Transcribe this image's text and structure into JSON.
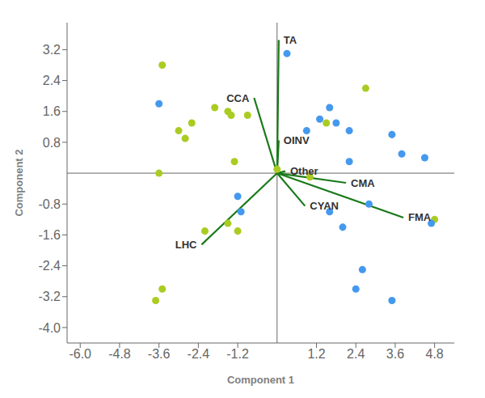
{
  "chart_data": {
    "type": "scatter",
    "xlabel": "Component 1",
    "ylabel": "Component 2",
    "series": [
      {
        "color": "#aacc22",
        "values": [
          [
            -3.5,
            2.8
          ],
          [
            -2.6,
            1.3
          ],
          [
            -3.0,
            1.1
          ],
          [
            -2.8,
            0.9
          ],
          [
            -1.9,
            1.7
          ],
          [
            -1.5,
            1.6
          ],
          [
            -1.4,
            1.5
          ],
          [
            -0.9,
            1.5
          ],
          [
            -1.3,
            0.3
          ],
          [
            0.0,
            0.1
          ],
          [
            1.5,
            1.3
          ],
          [
            2.7,
            2.2
          ],
          [
            -1.5,
            -1.3
          ],
          [
            -1.2,
            -1.5
          ],
          [
            -2.2,
            -1.5
          ],
          [
            -3.6,
            0.0
          ],
          [
            -3.5,
            -3.0
          ],
          [
            -3.7,
            -3.3
          ],
          [
            1.0,
            -0.1
          ],
          [
            4.8,
            -1.2
          ]
        ]
      },
      {
        "color": "#4499ee",
        "values": [
          [
            0.3,
            3.1
          ],
          [
            1.6,
            1.7
          ],
          [
            1.8,
            1.3
          ],
          [
            0.9,
            1.1
          ],
          [
            1.3,
            1.4
          ],
          [
            2.2,
            1.1
          ],
          [
            3.5,
            1.0
          ],
          [
            2.2,
            0.3
          ],
          [
            3.8,
            0.5
          ],
          [
            4.5,
            0.4
          ],
          [
            4.7,
            -1.3
          ],
          [
            2.8,
            -0.8
          ],
          [
            1.6,
            -1.0
          ],
          [
            2.0,
            -1.4
          ],
          [
            -1.2,
            -0.6
          ],
          [
            -1.1,
            -1.0
          ],
          [
            -3.6,
            1.8
          ],
          [
            2.6,
            -2.5
          ],
          [
            2.4,
            -3.0
          ],
          [
            3.5,
            -3.3
          ]
        ]
      }
    ],
    "annotations": [
      {
        "text": "TA",
        "start": [
          0.0,
          0.0
        ],
        "end": [
          0.05,
          3.45
        ],
        "color": "#1a7a1a"
      },
      {
        "text": "CCA",
        "start": [
          0.0,
          0.0
        ],
        "end": [
          -0.7,
          1.95
        ],
        "color": "#1a7a1a"
      },
      {
        "text": "OINV",
        "start": [
          0.0,
          0.0
        ],
        "end": [
          0.05,
          0.85
        ],
        "color": "#1a7a1a"
      },
      {
        "text": "Other",
        "start": [
          0.0,
          0.0
        ],
        "end": [
          0.25,
          0.05
        ],
        "color": "#1a7a1a"
      },
      {
        "text": "CMA",
        "start": [
          0.0,
          0.0
        ],
        "end": [
          2.1,
          -0.25
        ],
        "color": "#1a7a1a"
      },
      {
        "text": "CYAN",
        "start": [
          0.0,
          0.0
        ],
        "end": [
          0.85,
          -0.85
        ],
        "color": "#1a7a1a"
      },
      {
        "text": "FMA",
        "start": [
          0.0,
          0.0
        ],
        "end": [
          3.85,
          -1.15
        ],
        "color": "#1a7a1a"
      },
      {
        "text": "LHC",
        "start": [
          0.0,
          0.0
        ],
        "end": [
          -2.3,
          -1.85
        ],
        "color": "#1a7a1a"
      }
    ],
    "xlim": [
      -6.4,
      5.4
    ],
    "ylim": [
      -4.4,
      3.9
    ],
    "xticks": [
      {
        "value": -6.0,
        "label": "-6.0"
      },
      -4.8,
      -3.6,
      -2.4,
      -1.2,
      1.2,
      2.4,
      3.6,
      4.8
    ],
    "yticks": [
      {
        "value": -4.0,
        "label": "-4.0"
      },
      -3.2,
      -2.4,
      -1.6,
      -0.8,
      0.8,
      1.6,
      2.4,
      3.2
    ],
    "grid": false
  }
}
